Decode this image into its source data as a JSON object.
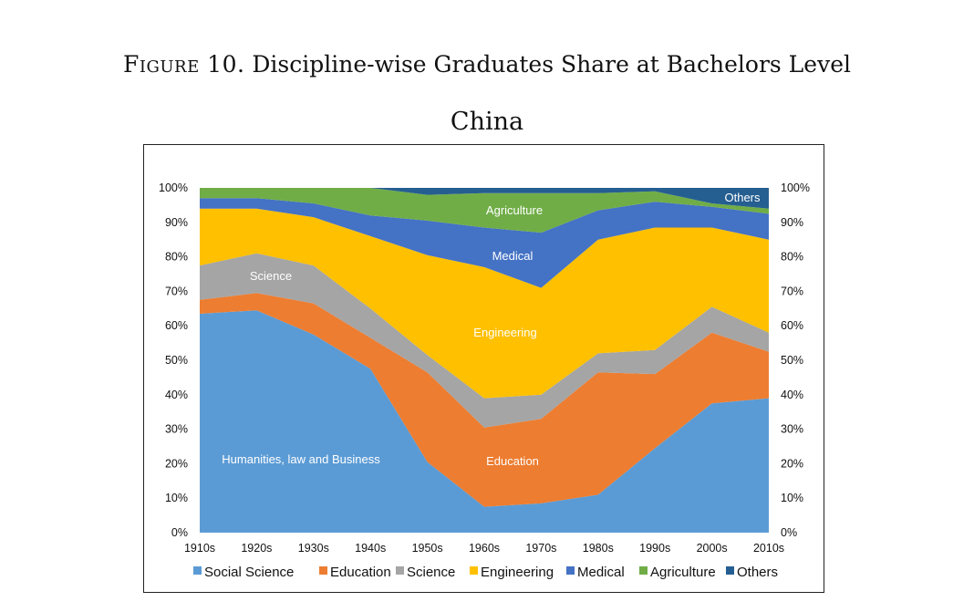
{
  "figure": {
    "lead": "Figure 10.",
    "rest": "Discipline-wise Graduates Share at Bachelors Level"
  },
  "chart_data": {
    "type": "area",
    "stacked": true,
    "percent_axis": true,
    "title": "China",
    "categories": [
      "1910s",
      "1920s",
      "1930s",
      "1940s",
      "1950s",
      "1960s",
      "1970s",
      "1980s",
      "1990s",
      "2000s",
      "2010s"
    ],
    "ylim": [
      0,
      100
    ],
    "yticks": [
      "0%",
      "10%",
      "20%",
      "30%",
      "40%",
      "50%",
      "60%",
      "70%",
      "80%",
      "90%",
      "100%"
    ],
    "grid": false,
    "legend_position": "bottom",
    "series": [
      {
        "name": "Social Science",
        "color": "#5b9bd5",
        "values": [
          63.5,
          64.5,
          57.5,
          47.5,
          20.5,
          7.5,
          8.5,
          11,
          24.5,
          37.5,
          39
        ]
      },
      {
        "name": "Education",
        "color": "#ed7d31",
        "values": [
          4,
          5,
          9,
          9,
          26,
          23,
          24.5,
          35.5,
          21.5,
          20.5,
          13.5
        ]
      },
      {
        "name": "Science",
        "color": "#a5a5a5",
        "values": [
          10,
          11.5,
          11,
          8.5,
          5,
          8.5,
          7,
          5.5,
          7,
          7.5,
          5.5
        ]
      },
      {
        "name": "Engineering",
        "color": "#ffc000",
        "values": [
          16.5,
          13,
          14,
          21,
          29,
          38,
          31,
          33,
          35.5,
          23,
          27
        ]
      },
      {
        "name": "Medical",
        "color": "#4472c4",
        "values": [
          3,
          3,
          4,
          6,
          10,
          11.5,
          16,
          8.5,
          7.5,
          6,
          7.5
        ]
      },
      {
        "name": "Agriculture",
        "color": "#70ad47",
        "values": [
          3,
          3,
          4.5,
          8,
          7.5,
          10,
          11.5,
          5,
          3,
          1,
          1.5
        ]
      },
      {
        "name": "Others",
        "color": "#255e91",
        "values": [
          0,
          0,
          0,
          0,
          2,
          1.5,
          1.5,
          1.5,
          1,
          4.5,
          6
        ]
      }
    ],
    "area_labels": [
      "Humanities, law and Business",
      "Education",
      "Science",
      "Engineering",
      "Medical",
      "Agriculture",
      "Others"
    ]
  }
}
